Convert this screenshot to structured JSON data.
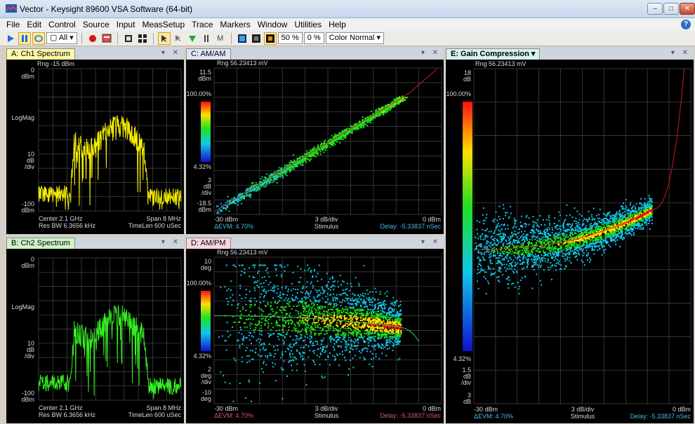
{
  "window": {
    "title": "Vector - Keysight 89600 VSA Software (64-bit)"
  },
  "menu": [
    "File",
    "Edit",
    "Control",
    "Source",
    "Input",
    "MeasSetup",
    "Trace",
    "Markers",
    "Window",
    "Utilities",
    "Help"
  ],
  "toolbar": {
    "all_label": "All",
    "pct1": "50 %",
    "pct2": "0 %",
    "color_mode": "Color Normal"
  },
  "panes": {
    "a": {
      "tab": "A: Ch1 Spectrum",
      "tab_color": "#fff8a8",
      "trace_color": "#f5f000",
      "rng": "Rng -15 dBm",
      "y_top": "0",
      "y_top_unit": "dBm",
      "y_mid_label": "LogMag",
      "y_div": "10",
      "y_div_unit1": "dB",
      "y_div_unit2": "/div",
      "y_bot": "-100",
      "y_bot_unit": "dBm",
      "center": "Center 2.1 GHz",
      "span": "Span 8 MHz",
      "res_bw": "Res BW 6.3656 kHz",
      "timelen": "TimeLen 600 uSec"
    },
    "b": {
      "tab": "B: Ch2 Spectrum",
      "tab_color": "#cdf3c4",
      "trace_color": "#35f020",
      "y_top": "0",
      "y_top_unit": "dBm",
      "y_mid_label": "LogMag",
      "y_div": "10",
      "y_div_unit1": "dB",
      "y_div_unit2": "/div",
      "y_bot": "-100",
      "y_bot_unit": "dBm",
      "center": "Center 2.1 GHz",
      "span": "Span 8 MHz",
      "res_bw": "Res BW 6.3656 kHz",
      "timelen": "TimeLen 600 uSec"
    },
    "c": {
      "tab": "C: AM/AM",
      "tab_color": "#dde6f3",
      "rng": "Rng 56.23413 mV",
      "y_top": "11.5",
      "y_top_unit": "dBm",
      "scale_top": "100.00%",
      "scale_bot": "4.32%",
      "y_div": "3",
      "y_div_unit1": "dB",
      "y_div_unit2": "/div",
      "y_bot": "-18.5",
      "y_bot_unit": "dBm",
      "x_left": "-30 dBm",
      "x_mid": "3 dB/div",
      "x_right": "0 dBm",
      "x_label": "Stimulus",
      "evm": "ΔEVM: 4.70%",
      "delay": "Delay: -5.33837 nSec"
    },
    "d": {
      "tab": "D: AM/PM",
      "tab_color": "#f6d7de",
      "rng": "Rng 56.23413 mV",
      "y_top": "10",
      "y_top_unit": "deg",
      "scale_top": "100.00%",
      "scale_bot": "4.32%",
      "y_div": "2",
      "y_div_unit1": "deg",
      "y_div_unit2": "/div",
      "y_bot": "-10",
      "y_bot_unit": "deg",
      "x_left": "-30 dBm",
      "x_mid": "3 dB/div",
      "x_right": "0 dBm",
      "x_label": "Stimulus",
      "evm": "ΔEVM: 4.70%",
      "delay": "Delay: -5.33837 nSec"
    },
    "e": {
      "tab": "E: Gain Compression",
      "tab_color": "#d6f1ee",
      "rng": "Rng 56.23413 mV",
      "y_top": "18",
      "y_top_unit": "dB",
      "scale_top": "100.00%",
      "scale_bot": "4.32%",
      "y_div": "1.5",
      "y_div_unit1": "dB",
      "y_div_unit2": "/div",
      "y_bot": "3",
      "y_bot_unit": "dB",
      "x_left": "-30 dBm",
      "x_mid": "3 dB/div",
      "x_right": "0 dBm",
      "x_label": "Stimulus",
      "evm": "ΔEVM: 4.70%",
      "delay": "Delay: -5.33837 nSec"
    }
  }
}
